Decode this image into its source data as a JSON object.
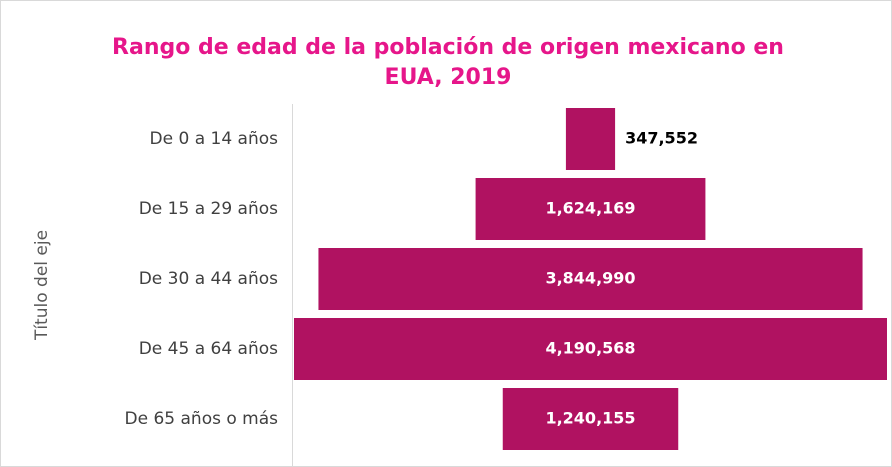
{
  "chart_data": {
    "type": "funnel",
    "title": "Rango de edad de la población de origen mexicano en EUA, 2019",
    "y_axis_title": "Título del eje",
    "categories": [
      "De 0 a 14 años",
      "De 15 a 29 años",
      "De 30 a 44 años",
      "De 45 a 64 años",
      "De 65 años o más"
    ],
    "values": [
      347552,
      1624169,
      3844990,
      4190568,
      1240155
    ],
    "value_labels": [
      "347,552",
      "1,624,169",
      "3,844,990",
      "4,190,568",
      "1,240,155"
    ],
    "color": "#b01261"
  }
}
